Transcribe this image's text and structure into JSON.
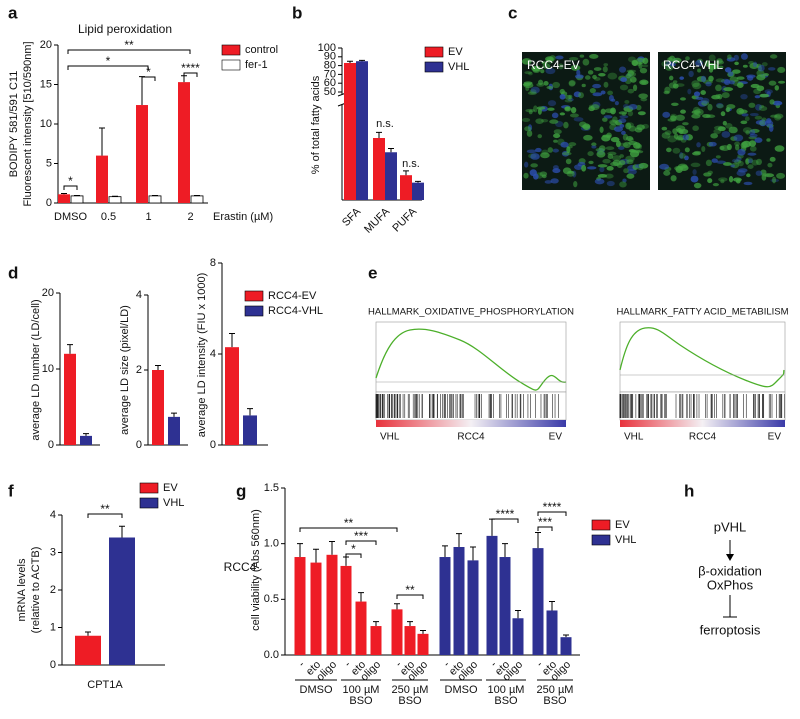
{
  "chart_data": [
    {
      "type": "bar",
      "title": "Lipid peroxidation",
      "ylabel": [
        "BODIPY 581/591 C11",
        "Fluorescent intensity [510/590nm]"
      ],
      "xlabel": "Erastin (µM)",
      "categories": [
        "DMSO",
        "0.5",
        "1",
        "2"
      ],
      "series": [
        {
          "name": "control",
          "color": "#ee1c25",
          "values": [
            1.1,
            6,
            12.4,
            15.3
          ],
          "errors": [
            0.1,
            3.5,
            3.6,
            0.8
          ]
        },
        {
          "name": "fer-1",
          "color": "#ffffff",
          "values": [
            0.9,
            0.8,
            0.9,
            0.9
          ],
          "errors": [
            0.05,
            0.05,
            0.05,
            0.05
          ]
        }
      ],
      "ylim": [
        0,
        20
      ],
      "yticks": [
        0,
        5,
        10,
        15,
        20
      ],
      "annotations": [
        "*",
        "*",
        "****",
        "*",
        "**"
      ]
    },
    {
      "type": "bar",
      "ylabel": [
        "% of total fatty acids"
      ],
      "categories": [
        "SFA",
        "MUFA",
        "PUFA"
      ],
      "series": [
        {
          "name": "EV",
          "color": "#ee1c25",
          "values": [
            83,
            10,
            4
          ],
          "errors": [
            2,
            0.9,
            0.7
          ]
        },
        {
          "name": "VHL",
          "color": "#2e3192",
          "values": [
            85,
            7.7,
            2.8
          ],
          "errors": [
            1,
            0.6,
            0.2
          ]
        }
      ],
      "ylim": [
        0,
        100
      ],
      "ybreak": [
        15,
        50
      ],
      "yticks": [
        50,
        60,
        70,
        80,
        90,
        100
      ],
      "annotations": [
        "n.s.",
        "n.s."
      ]
    },
    {
      "type": "bar",
      "ylabel": "average LD number (LD/cell)",
      "series": [
        {
          "name": "RCC4-EV",
          "color": "#ee1c25",
          "values": [
            12
          ],
          "errors": [
            1.2
          ]
        },
        {
          "name": "RCC4-VHL",
          "color": "#2e3192",
          "values": [
            1.2
          ],
          "errors": [
            0.3
          ]
        }
      ],
      "ylim": [
        0,
        20
      ],
      "yticks": [
        0,
        10,
        20
      ]
    },
    {
      "type": "bar",
      "ylabel": "average LD size (pixel/LD)",
      "series": [
        {
          "color": "#ee1c25",
          "values": [
            2.0
          ],
          "errors": [
            0.12
          ]
        },
        {
          "color": "#2e3192",
          "values": [
            0.75
          ],
          "errors": [
            0.1
          ]
        }
      ],
      "ylim": [
        0,
        4
      ],
      "yticks": [
        0,
        2,
        4
      ]
    },
    {
      "type": "bar",
      "ylabel": "average LD intensity (FIU x 1000)",
      "series": [
        {
          "color": "#ee1c25",
          "values": [
            4.3
          ],
          "errors": [
            0.6
          ]
        },
        {
          "color": "#2e3192",
          "values": [
            1.3
          ],
          "errors": [
            0.3
          ]
        }
      ],
      "ylim": [
        0,
        8
      ],
      "yticks": [
        0,
        4,
        8
      ]
    },
    {
      "type": "bar",
      "ylabel": [
        "mRNA levels",
        "(relative to ACTB)"
      ],
      "categories": [
        "CPT1A"
      ],
      "note": "RCC4",
      "series": [
        {
          "name": "EV",
          "color": "#ee1c25",
          "values": [
            0.78
          ],
          "errors": [
            0.1
          ]
        },
        {
          "name": "VHL",
          "color": "#2e3192",
          "values": [
            3.4
          ],
          "errors": [
            0.3
          ]
        }
      ],
      "ylim": [
        0,
        4
      ],
      "yticks": [
        0,
        1,
        2,
        3,
        4
      ],
      "annotations": [
        "**"
      ]
    },
    {
      "type": "bar",
      "ylabel": [
        "cell viability (Abs 560nm)"
      ],
      "categories": [
        "-",
        "eto",
        "oligo",
        "-",
        "eto",
        "oligo",
        "-",
        "eto",
        "oligo"
      ],
      "groups": [
        [
          "DMSO"
        ],
        [
          "100 µM",
          "BSO"
        ],
        [
          "250 µM",
          "BSO"
        ]
      ],
      "series": [
        {
          "name": "EV",
          "color": "#ee1c25",
          "values": [
            0.88,
            0.83,
            0.9,
            0.8,
            0.48,
            0.26,
            0.41,
            0.26,
            0.19
          ],
          "errors": [
            0.12,
            0.12,
            0.12,
            0.08,
            0.08,
            0.04,
            0.05,
            0.04,
            0.03
          ]
        },
        {
          "name": "VHL",
          "color": "#2e3192",
          "values": [
            0.88,
            0.97,
            0.85,
            1.07,
            0.88,
            0.33,
            0.96,
            0.4,
            0.16
          ],
          "errors": [
            0.1,
            0.12,
            0.12,
            0.15,
            0.12,
            0.07,
            0.14,
            0.08,
            0.02
          ]
        }
      ],
      "ylim": [
        0,
        1.5
      ],
      "yticks": [
        {
          "value": 0,
          "label": "0.0"
        },
        0.5,
        {
          "value": 1,
          "label": "1.0"
        },
        1.5
      ],
      "annotations": [
        "**",
        "***",
        "*",
        "**",
        "****",
        "****",
        "***"
      ]
    }
  ],
  "panels": {
    "letters": [
      "a",
      "b",
      "c",
      "d",
      "e",
      "f",
      "g",
      "h"
    ],
    "c_labels": [
      "RCC4-EV",
      "RCC4-VHL"
    ],
    "e": [
      {
        "title": "HALLMARK_OXIDATIVE_PHOSPHORYLATION",
        "axis": [
          "VHL",
          "RCC4",
          "EV"
        ]
      },
      {
        "title": "HALLMARK_FATTY ACID_METABILISM",
        "axis": [
          "VHL",
          "RCC4",
          "EV"
        ]
      }
    ],
    "h": [
      "pVHL",
      "β-oxidation",
      "OxPhos",
      "ferroptosis"
    ]
  }
}
